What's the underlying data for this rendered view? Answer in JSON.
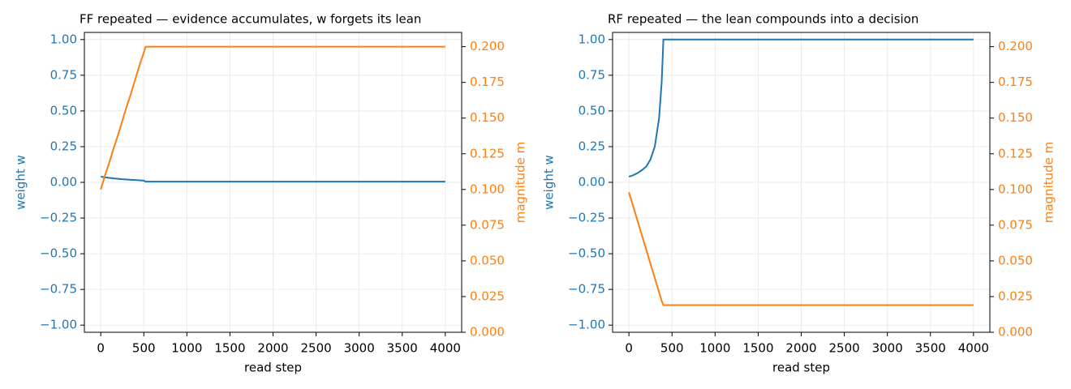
{
  "chart_data": [
    {
      "type": "line",
      "title": "FF repeated  —  evidence accumulates, w forgets its lean",
      "xlabel": "read step",
      "ylabel": "weight  w",
      "y2label": "magnitude  m",
      "x": [
        0,
        50,
        100,
        150,
        200,
        250,
        300,
        350,
        400,
        450,
        500,
        520,
        1000,
        2000,
        3000,
        4000
      ],
      "series": [
        {
          "color": "#1f77b4",
          "values": [
            0.04,
            0.035,
            0.031,
            0.028,
            0.025,
            0.022,
            0.02,
            0.018,
            0.016,
            0.014,
            0.012,
            0.005,
            0.005,
            0.005,
            0.005,
            0.005
          ]
        },
        {
          "color": "#ff7f0e",
          "axis": "y2",
          "values": [
            0.1,
            0.11,
            0.119,
            0.129,
            0.138,
            0.148,
            0.158,
            0.167,
            0.177,
            0.187,
            0.196,
            0.2,
            0.2,
            0.2,
            0.2,
            0.2
          ]
        }
      ],
      "xlim": [
        -190,
        4190
      ],
      "xticks": [
        0,
        500,
        1000,
        1500,
        2000,
        2500,
        3000,
        3500,
        4000
      ],
      "ylim": [
        -1.05,
        1.05
      ],
      "yticks": [
        {
          "value": -1,
          "label": "−1.00"
        },
        {
          "value": -0.75,
          "label": "−0.75"
        },
        {
          "value": -0.5,
          "label": "−0.50"
        },
        {
          "value": -0.25,
          "label": "−0.25"
        },
        {
          "value": 0,
          "label": "0.00"
        },
        {
          "value": 0.25,
          "label": "0.25"
        },
        {
          "value": 0.5,
          "label": "0.50"
        },
        {
          "value": 0.75,
          "label": "0.75"
        },
        {
          "value": 1,
          "label": "1.00"
        }
      ],
      "y2lim": [
        0,
        0.21
      ],
      "y2ticks": [
        {
          "value": 0,
          "label": "0.000"
        },
        {
          "value": 0.025,
          "label": "0.025"
        },
        {
          "value": 0.05,
          "label": "0.050"
        },
        {
          "value": 0.075,
          "label": "0.075"
        },
        {
          "value": 0.1,
          "label": "0.100"
        },
        {
          "value": 0.125,
          "label": "0.125"
        },
        {
          "value": 0.15,
          "label": "0.150"
        },
        {
          "value": 0.175,
          "label": "0.175"
        },
        {
          "value": 0.2,
          "label": "0.200"
        }
      ],
      "grid": true
    },
    {
      "type": "line",
      "title": "RF repeated  —  the lean compounds into a decision",
      "xlabel": "read step",
      "ylabel": "weight  w",
      "y2label": "magnitude  m",
      "x": [
        0,
        50,
        100,
        150,
        200,
        250,
        300,
        350,
        380,
        400,
        1000,
        2000,
        3000,
        4000
      ],
      "series": [
        {
          "color": "#1f77b4",
          "values": [
            0.04,
            0.05,
            0.065,
            0.085,
            0.11,
            0.16,
            0.25,
            0.45,
            0.7,
            1.0,
            1.0,
            1.0,
            1.0,
            1.0
          ]
        },
        {
          "color": "#ff7f0e",
          "axis": "y2",
          "values": [
            0.098,
            0.088,
            0.078,
            0.068,
            0.058,
            0.048,
            0.038,
            0.028,
            0.022,
            0.019,
            0.019,
            0.019,
            0.019,
            0.019
          ]
        }
      ],
      "xlim": [
        -190,
        4190
      ],
      "xticks": [
        0,
        500,
        1000,
        1500,
        2000,
        2500,
        3000,
        3500,
        4000
      ],
      "ylim": [
        -1.05,
        1.05
      ],
      "yticks": [
        {
          "value": -1,
          "label": "−1.00"
        },
        {
          "value": -0.75,
          "label": "−0.75"
        },
        {
          "value": -0.5,
          "label": "−0.50"
        },
        {
          "value": -0.25,
          "label": "−0.25"
        },
        {
          "value": 0,
          "label": "0.00"
        },
        {
          "value": 0.25,
          "label": "0.25"
        },
        {
          "value": 0.5,
          "label": "0.50"
        },
        {
          "value": 0.75,
          "label": "0.75"
        },
        {
          "value": 1,
          "label": "1.00"
        }
      ],
      "y2lim": [
        0,
        0.21
      ],
      "y2ticks": [
        {
          "value": 0,
          "label": "0.000"
        },
        {
          "value": 0.025,
          "label": "0.025"
        },
        {
          "value": 0.05,
          "label": "0.050"
        },
        {
          "value": 0.075,
          "label": "0.075"
        },
        {
          "value": 0.1,
          "label": "0.100"
        },
        {
          "value": 0.125,
          "label": "0.125"
        },
        {
          "value": 0.15,
          "label": "0.150"
        },
        {
          "value": 0.175,
          "label": "0.175"
        },
        {
          "value": 0.2,
          "label": "0.200"
        }
      ],
      "grid": true
    }
  ]
}
